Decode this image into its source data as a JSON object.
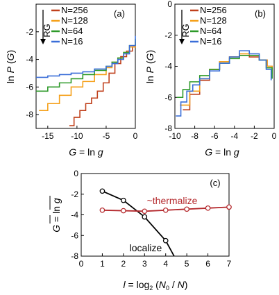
{
  "colors": {
    "N256": "#c0401c",
    "N128": "#f5a01a",
    "N64": "#2e9a2a",
    "N16": "#3a6ed8",
    "localize": "#000000",
    "thermalize": "#b52a2e"
  },
  "chart_data": [
    {
      "id": "a",
      "type": "line",
      "step": true,
      "panel_label": "(a)",
      "xlabel": "G = ln g",
      "ylabel": "ln P (G)",
      "xlim": [
        -17,
        0
      ],
      "ylim": [
        -9,
        0
      ],
      "xticks": [
        -15,
        -10,
        -5,
        0
      ],
      "yticks": [
        -8,
        -6,
        -4,
        -2
      ],
      "legend": {
        "position": "top-left",
        "arrow_label": "RG"
      },
      "series": [
        {
          "name": "N=256",
          "color_key": "N256",
          "x": [
            -11.3,
            -10.5,
            -9.5,
            -8.5,
            -7.5,
            -6.5,
            -5.5,
            -4.5,
            -3.5,
            -2.5,
            -1.5,
            -0.5,
            0
          ],
          "y": [
            -8.8,
            -8.2,
            -7.7,
            -7.2,
            -6.8,
            -6.3,
            -5.7,
            -5.0,
            -4.3,
            -3.8,
            -3.4,
            -3.1,
            -2.9
          ]
        },
        {
          "name": "N=128",
          "color_key": "N128",
          "x": [
            -16.5,
            -15,
            -13,
            -11,
            -9,
            -7,
            -5,
            -4,
            -3,
            -2,
            -1,
            0
          ],
          "y": [
            -7.7,
            -7.2,
            -6.6,
            -6.0,
            -5.6,
            -5.1,
            -4.6,
            -4.2,
            -3.9,
            -3.5,
            -3.1,
            -2.7
          ]
        },
        {
          "name": "N=64",
          "color_key": "N64",
          "x": [
            -17,
            -15,
            -13,
            -11,
            -9,
            -7,
            -5,
            -4,
            -3,
            -2,
            -1,
            0
          ],
          "y": [
            -6.3,
            -6.0,
            -5.7,
            -5.4,
            -5.1,
            -4.8,
            -4.5,
            -4.2,
            -3.9,
            -3.5,
            -3.0,
            -2.5
          ]
        },
        {
          "name": "N=16",
          "color_key": "N16",
          "x": [
            -17,
            -15,
            -13,
            -11,
            -9,
            -7,
            -5,
            -4,
            -3,
            -2,
            -1,
            0
          ],
          "y": [
            -5.3,
            -5.2,
            -5.1,
            -5.0,
            -4.9,
            -4.7,
            -4.5,
            -4.3,
            -4.0,
            -3.6,
            -3.0,
            -2.3
          ]
        }
      ]
    },
    {
      "id": "b",
      "type": "line",
      "step": true,
      "panel_label": "(b)",
      "xlabel": "G = ln g",
      "ylabel": "ln P (G)",
      "xlim": [
        -10,
        0
      ],
      "ylim": [
        -8,
        0
      ],
      "xticks": [
        -10,
        -8,
        -6,
        -4,
        -2,
        0
      ],
      "yticks": [
        -8,
        -6,
        -4,
        -2,
        0
      ],
      "legend": {
        "position": "top-left",
        "arrow_label": "RG"
      },
      "series": [
        {
          "name": "N=256",
          "color_key": "N256",
          "x": [
            -9.2,
            -8.5,
            -7.5,
            -6.5,
            -5.5,
            -4.5,
            -3.5,
            -2.5,
            -1.5,
            -0.7,
            -0.2
          ],
          "y": [
            -6.8,
            -5.8,
            -4.9,
            -4.2,
            -3.7,
            -3.4,
            -3.3,
            -3.4,
            -3.6,
            -4.0,
            -4.4
          ]
        },
        {
          "name": "N=128",
          "color_key": "N128",
          "x": [
            -9.5,
            -8.5,
            -7.5,
            -6.5,
            -5.5,
            -4.5,
            -3.5,
            -2.5,
            -1.5,
            -0.7,
            -0.2
          ],
          "y": [
            -6.5,
            -5.6,
            -4.8,
            -4.2,
            -3.7,
            -3.4,
            -3.2,
            -3.3,
            -3.6,
            -4.0,
            -4.5
          ]
        },
        {
          "name": "N=64",
          "color_key": "N64",
          "x": [
            -9.8,
            -9.2,
            -8.5,
            -7.5,
            -6.5,
            -5.5,
            -4.5,
            -3.5,
            -2.5,
            -1.5,
            -0.8,
            -0.2
          ],
          "y": [
            -6.0,
            -5.5,
            -5.0,
            -4.6,
            -4.2,
            -3.8,
            -3.5,
            -3.3,
            -3.3,
            -3.6,
            -4.1,
            -4.8
          ]
        },
        {
          "name": "N=16",
          "color_key": "N16",
          "x": [
            -9.9,
            -9.4,
            -8.8,
            -8.2,
            -7.5,
            -6.5,
            -5.5,
            -4.5,
            -3.5,
            -3.0,
            -2.5,
            -1.5,
            -0.8,
            -0.3
          ],
          "y": [
            -7.2,
            -6.3,
            -5.6,
            -5.2,
            -4.8,
            -4.3,
            -3.8,
            -3.4,
            -3.0,
            -3.0,
            -3.2,
            -3.6,
            -4.2,
            -4.9
          ]
        }
      ]
    },
    {
      "id": "c",
      "type": "line",
      "panel_label": "(c)",
      "xlabel": "l = log2 (N0 / N)",
      "ylabel": "G = ln g (overlined)",
      "xlim": [
        0,
        7
      ],
      "ylim": [
        -8,
        0
      ],
      "xticks": [
        0,
        1,
        2,
        3,
        4,
        5,
        6,
        7
      ],
      "yticks": [
        -8,
        -6,
        -4,
        -2,
        0
      ],
      "annotations": [
        "~thermalize",
        "localize"
      ],
      "series": [
        {
          "name": "localize",
          "color_key": "localize",
          "x": [
            1,
            2,
            3,
            4,
            4.4
          ],
          "y": [
            -1.7,
            -2.6,
            -4.2,
            -6.5,
            -8
          ]
        },
        {
          "name": "thermalize",
          "color_key": "thermalize",
          "x": [
            1,
            2,
            3,
            4,
            5,
            6,
            7
          ],
          "y": [
            -3.55,
            -3.6,
            -3.65,
            -3.55,
            -3.45,
            -3.35,
            -3.25
          ]
        }
      ]
    }
  ]
}
